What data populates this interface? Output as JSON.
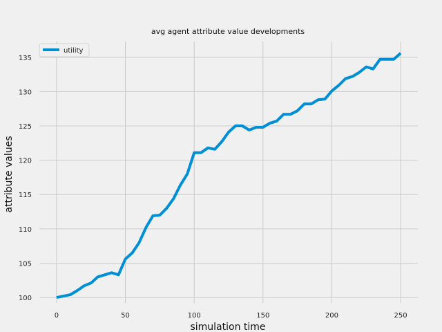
{
  "chart_data": {
    "type": "line",
    "title": "avg agent attribute value developments",
    "xlabel": "simulation time",
    "ylabel": "attribute values",
    "xlim": [
      -12.5,
      262.5
    ],
    "ylim": [
      99.2,
      137.3
    ],
    "xticks": [
      0,
      50,
      100,
      150,
      200,
      250
    ],
    "yticks": [
      100,
      105,
      110,
      115,
      120,
      125,
      130,
      135
    ],
    "grid": true,
    "legend_position": "top-left",
    "series": [
      {
        "name": "utility",
        "color": "#008fd5",
        "x": [
          0,
          5,
          10,
          15,
          20,
          25,
          30,
          35,
          40,
          45,
          50,
          55,
          60,
          65,
          70,
          75,
          80,
          85,
          90,
          95,
          100,
          105,
          110,
          115,
          120,
          125,
          130,
          135,
          140,
          145,
          150,
          155,
          160,
          165,
          170,
          175,
          180,
          185,
          190,
          195,
          200,
          205,
          210,
          215,
          220,
          225,
          230,
          235,
          240,
          245,
          250
        ],
        "y": [
          100.0,
          100.2,
          100.4,
          101.0,
          101.7,
          102.1,
          103.0,
          103.3,
          103.6,
          103.3,
          105.6,
          106.5,
          108.0,
          110.2,
          111.9,
          112.0,
          113.0,
          114.4,
          116.4,
          118.0,
          121.1,
          121.1,
          121.8,
          121.6,
          122.7,
          124.1,
          125.0,
          125.0,
          124.4,
          124.8,
          124.8,
          125.4,
          125.7,
          126.7,
          126.7,
          127.2,
          128.2,
          128.2,
          128.8,
          128.9,
          130.1,
          130.9,
          131.9,
          132.2,
          132.8,
          133.6,
          133.3,
          134.7,
          134.7,
          134.7,
          135.6
        ]
      }
    ]
  }
}
